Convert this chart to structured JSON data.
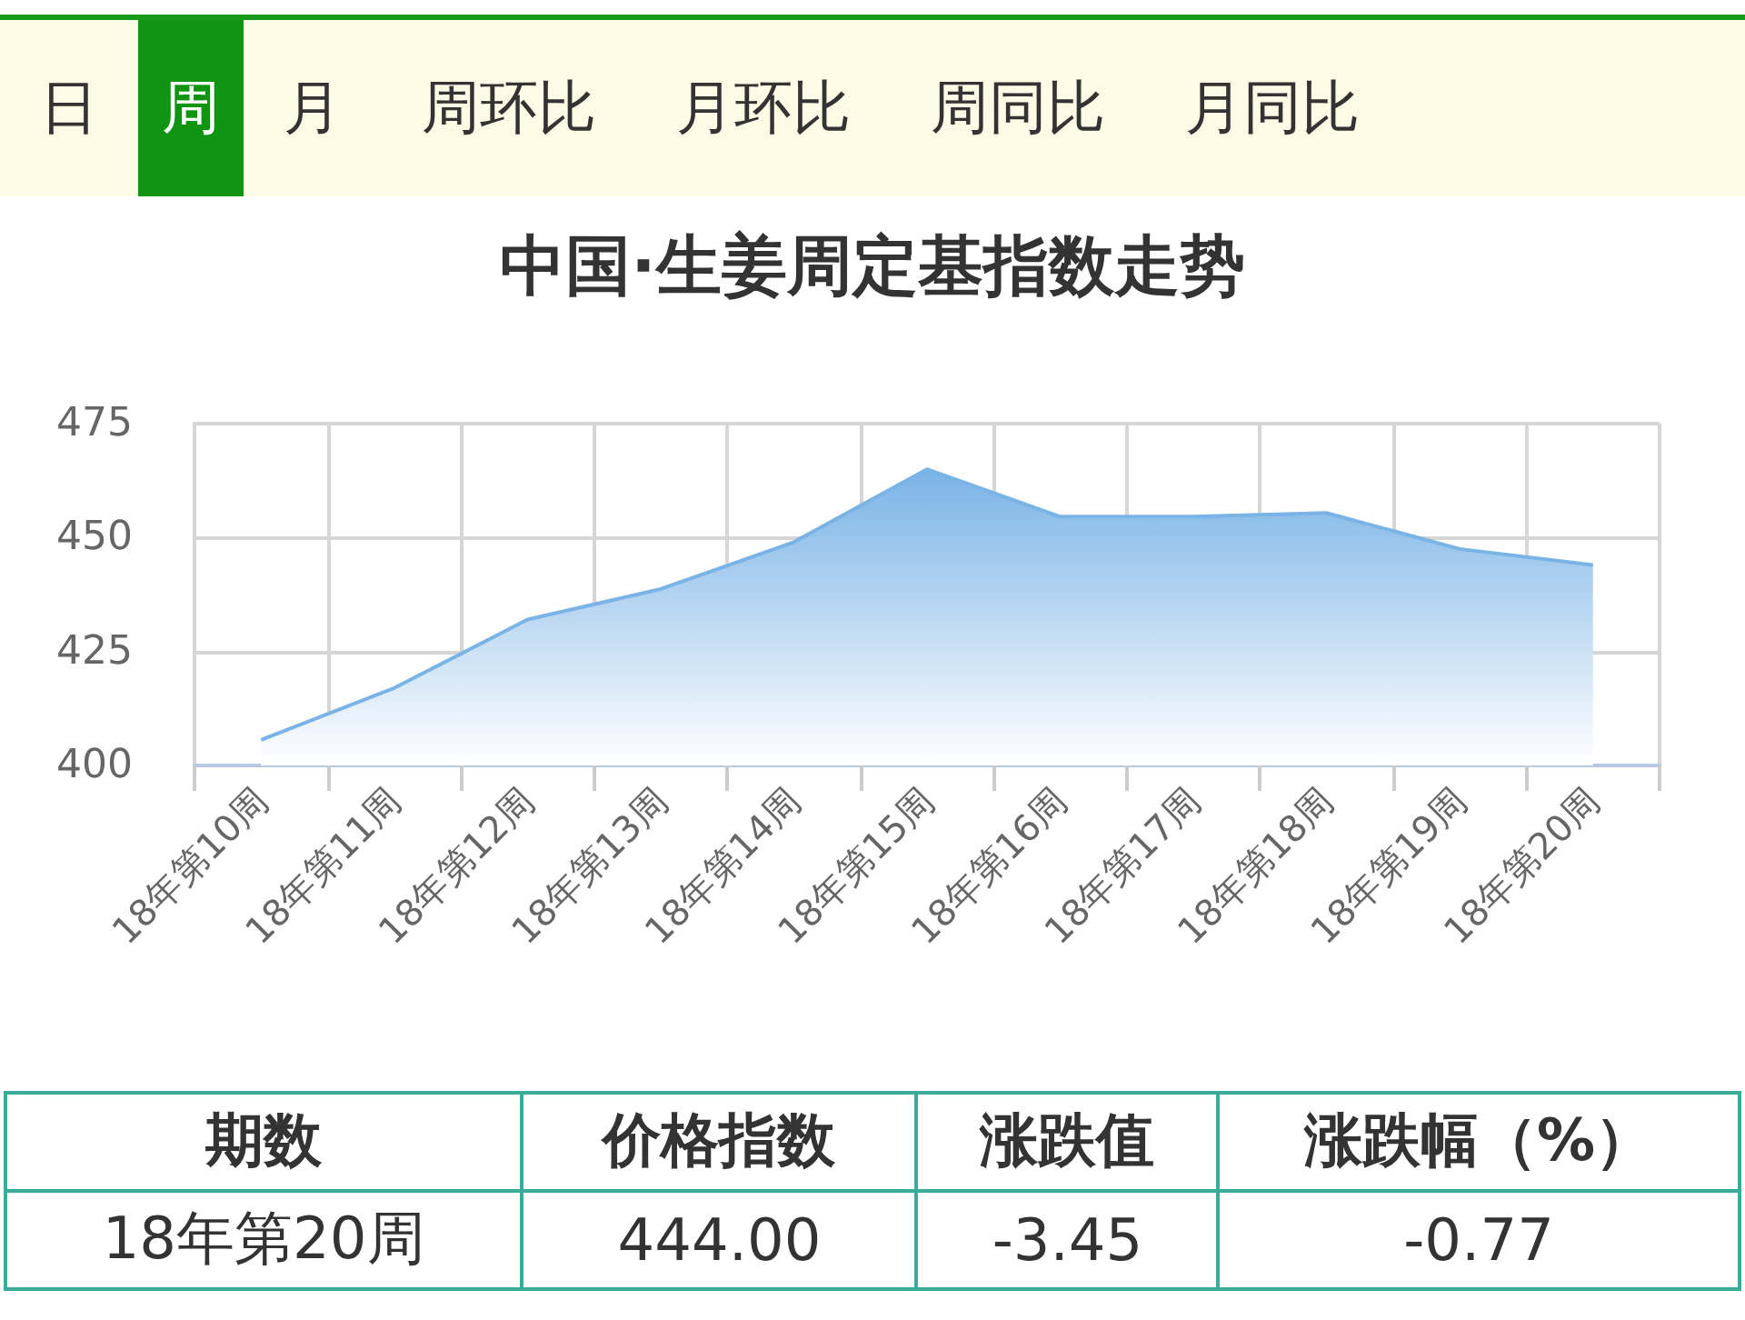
{
  "chart_data": {
    "type": "area",
    "title": "中国·生姜周定基指数走势",
    "categories": [
      "18年第10周",
      "18年第11周",
      "18年第12周",
      "18年第13周",
      "18年第14周",
      "18年第15周",
      "18年第16周",
      "18年第17周",
      "18年第18周",
      "18年第19周",
      "18年第20周"
    ],
    "series": [
      {
        "color": "#7ab3e6",
        "values": [
          405.6,
          417,
          432,
          438.7,
          449,
          465,
          454.6,
          454.6,
          455.4,
          447.5,
          444
        ]
      }
    ],
    "ylim": [
      400,
      475
    ],
    "yticks": [
      400,
      425,
      450,
      475
    ],
    "grid": true,
    "marker": "none",
    "annotations": [
      "日",
      "周",
      "月",
      "周环比",
      "月环比",
      "周同比",
      "月同比",
      "期数",
      "价格指数",
      "涨跌值",
      "涨跌幅（%）",
      "18年第20周",
      "444.00",
      "-3.45",
      "-0.77"
    ]
  }
}
